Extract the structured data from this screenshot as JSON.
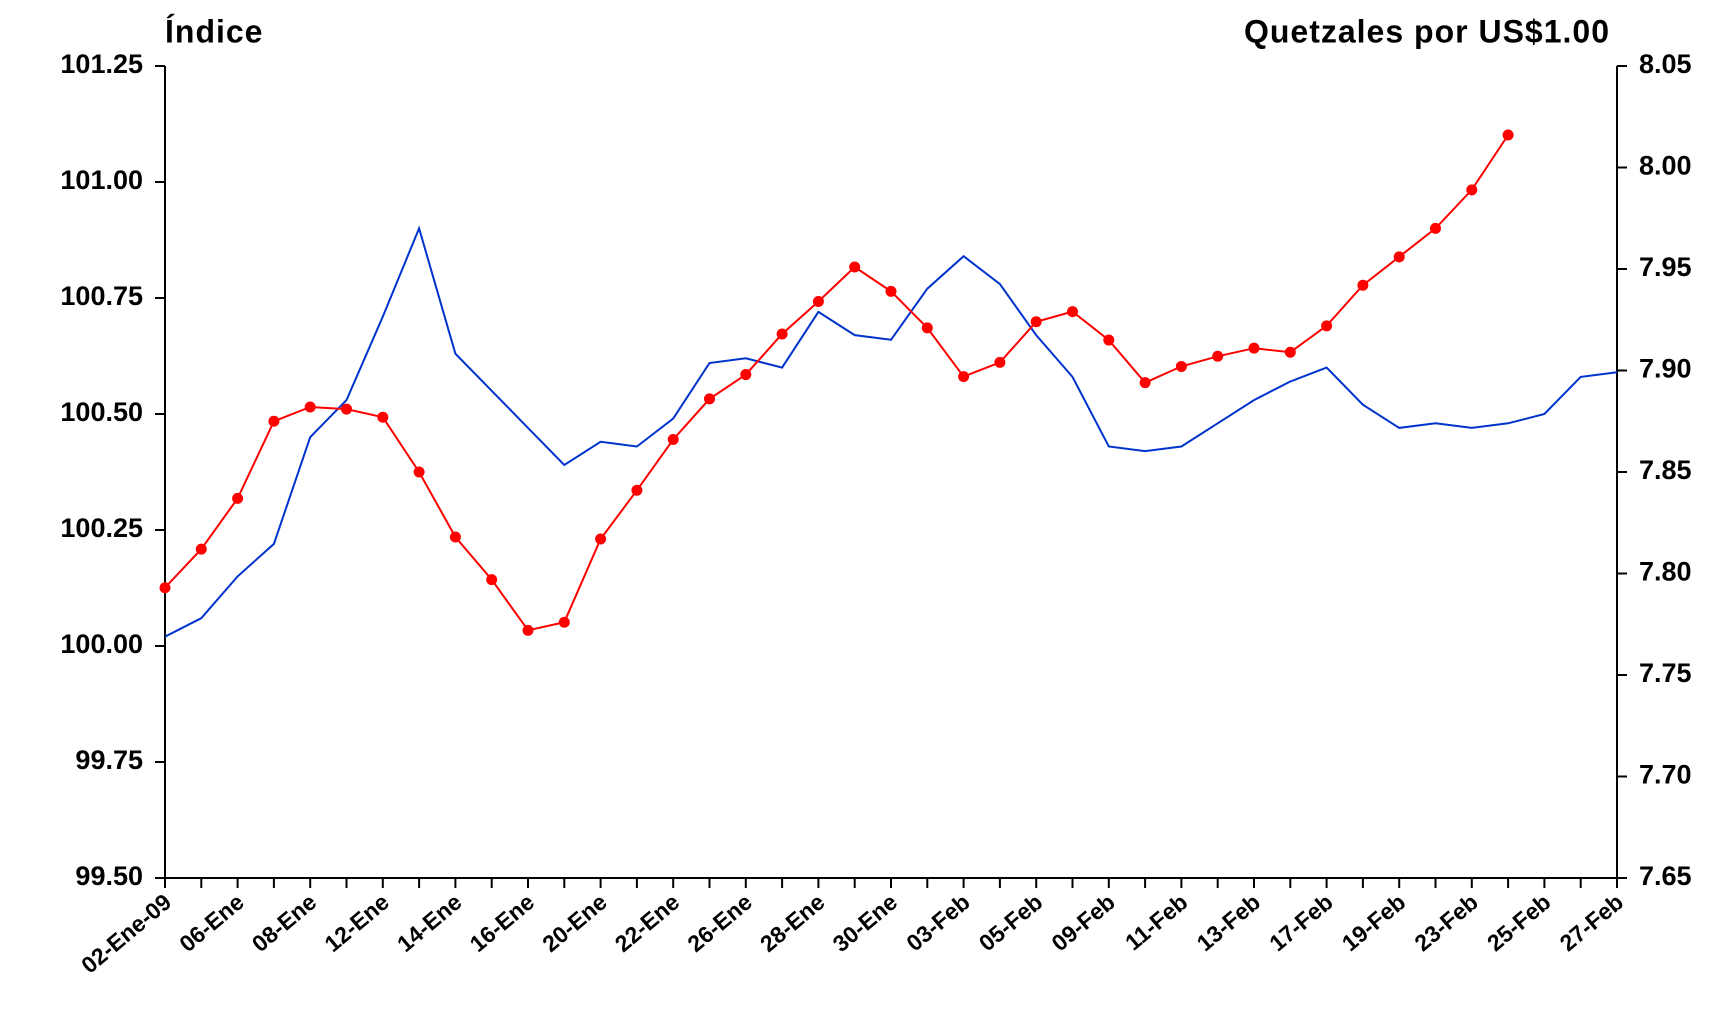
{
  "chart_data": {
    "type": "line",
    "y_label": "Índice",
    "y2_label": "Quetzales por US$1.00",
    "categories": [
      "02-Ene-09",
      null,
      "06-Ene",
      null,
      "08-Ene",
      null,
      "12-Ene",
      null,
      "14-Ene",
      null,
      "16-Ene",
      null,
      "20-Ene",
      null,
      "22-Ene",
      null,
      "26-Ene",
      null,
      "28-Ene",
      null,
      "30-Ene",
      null,
      "03-Feb",
      null,
      "05-Feb",
      null,
      "09-Feb",
      null,
      "11-Feb",
      null,
      "13-Feb",
      null,
      "17-Feb",
      null,
      "19-Feb",
      null,
      "23-Feb",
      null,
      "25-Feb",
      null,
      "27-Feb"
    ],
    "series": [
      {
        "color": "#0033cc",
        "axis": "y",
        "markers": false,
        "values": [
          100.02,
          100.06,
          100.15,
          100.22,
          100.45,
          100.53,
          100.71,
          100.9,
          100.63,
          100.55,
          100.47,
          100.39,
          100.44,
          100.43,
          100.49,
          100.61,
          100.62,
          100.6,
          100.72,
          100.67,
          100.66,
          100.77,
          100.84,
          100.78,
          100.67,
          100.58,
          100.43,
          100.42,
          100.43,
          100.48,
          100.53,
          100.57,
          100.6,
          100.52,
          100.47,
          100.48,
          100.47,
          100.48,
          100.5,
          100.58,
          100.59
        ]
      },
      {
        "color": "#ff0000",
        "axis": "y2",
        "markers": true,
        "values": [
          7.793,
          7.812,
          7.837,
          7.875,
          7.882,
          7.881,
          7.877,
          7.85,
          7.818,
          7.797,
          7.772,
          7.776,
          7.817,
          7.841,
          7.866,
          7.886,
          7.898,
          7.918,
          7.934,
          7.951,
          7.939,
          7.921,
          7.897,
          7.904,
          7.924,
          7.929,
          7.915,
          7.894,
          7.902,
          7.907,
          7.911,
          7.909,
          7.922,
          7.942,
          7.956,
          7.97,
          7.989,
          8.016,
          null,
          null,
          null
        ]
      }
    ],
    "ylim": [
      99.5,
      101.25
    ],
    "yticks": [
      {
        "value": 99.5,
        "label": "99.50"
      },
      99.75,
      {
        "value": 100,
        "label": "100.00"
      },
      100.25,
      {
        "value": 100.5,
        "label": "100.50"
      },
      100.75,
      {
        "value": 101,
        "label": "101.00"
      },
      101.25
    ],
    "y2lim": [
      7.65,
      8.05
    ],
    "y2ticks": [
      7.65,
      {
        "value": 7.7,
        "label": "7.70"
      },
      7.75,
      {
        "value": 7.8,
        "label": "7.80"
      },
      7.85,
      {
        "value": 7.9,
        "label": "7.90"
      },
      7.95,
      {
        "value": 8,
        "label": "8.00"
      },
      8.05
    ],
    "grid": false
  }
}
